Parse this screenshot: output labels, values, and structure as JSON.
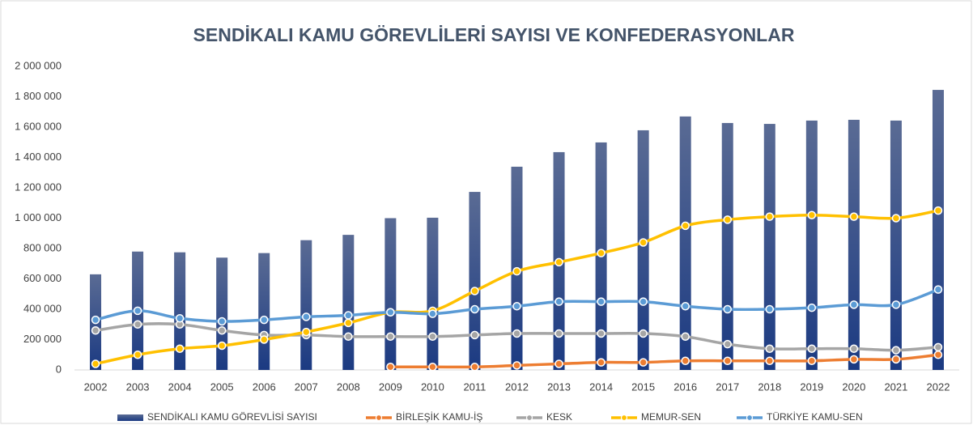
{
  "chart_data": {
    "type": "bar",
    "title": "SENDİKALI KAMU GÖREVLİLERİ SAYISI VE KONFEDERASYONLAR",
    "categories": [
      "2002",
      "2003",
      "2004",
      "2005",
      "2006",
      "2007",
      "2008",
      "2009",
      "2010",
      "2011",
      "2012",
      "2013",
      "2014",
      "2015",
      "2016",
      "2017",
      "2018",
      "2019",
      "2020",
      "2021",
      "2022"
    ],
    "series": [
      {
        "name": "SENDİKALI KAMU GÖREVLİSİ SAYISI",
        "type": "bar",
        "color": "#203a73",
        "values": [
          630000,
          780000,
          775000,
          740000,
          770000,
          855000,
          890000,
          1000000,
          1003000,
          1173000,
          1339000,
          1435000,
          1499000,
          1579000,
          1670000,
          1627000,
          1621000,
          1643000,
          1648000,
          1643000,
          1845000
        ]
      },
      {
        "name": "BİRLEŞİK KAMU-İŞ",
        "type": "line",
        "color": "#ed7d31",
        "values": [
          null,
          null,
          null,
          null,
          null,
          null,
          null,
          20000,
          20000,
          20000,
          30000,
          40000,
          50000,
          50000,
          60000,
          60000,
          60000,
          60000,
          70000,
          70000,
          100000
        ]
      },
      {
        "name": "KESK",
        "type": "line",
        "color": "#a5a5a5",
        "values": [
          260000,
          300000,
          300000,
          260000,
          230000,
          230000,
          220000,
          220000,
          220000,
          230000,
          240000,
          240000,
          240000,
          240000,
          220000,
          170000,
          140000,
          140000,
          140000,
          130000,
          150000
        ]
      },
      {
        "name": "MEMUR-SEN",
        "type": "line",
        "color": "#ffc000",
        "values": [
          40000,
          100000,
          140000,
          160000,
          200000,
          250000,
          310000,
          380000,
          390000,
          520000,
          650000,
          710000,
          770000,
          840000,
          950000,
          990000,
          1010000,
          1020000,
          1010000,
          1000000,
          1050000
        ]
      },
      {
        "name": "TÜRKİYE KAMU-SEN",
        "type": "line",
        "color": "#5b9bd5",
        "values": [
          330000,
          390000,
          340000,
          320000,
          330000,
          350000,
          360000,
          380000,
          370000,
          400000,
          420000,
          450000,
          450000,
          450000,
          420000,
          400000,
          400000,
          410000,
          430000,
          430000,
          530000
        ]
      }
    ],
    "ylim": [
      0,
      2000000
    ],
    "yticks": [
      0,
      {
        "value": 200000,
        "label": "200 000"
      },
      {
        "value": 400000,
        "label": "400 000"
      },
      {
        "value": 600000,
        "label": "600 000"
      },
      {
        "value": 800000,
        "label": "800 000"
      },
      {
        "value": 1000000,
        "label": "1 000 000"
      },
      {
        "value": 1200000,
        "label": "1 200 000"
      },
      {
        "value": 1400000,
        "label": "1 400 000"
      },
      {
        "value": 1600000,
        "label": "1 600 000"
      },
      {
        "value": 1800000,
        "label": "1 800 000"
      },
      {
        "value": 2000000,
        "label": "2 000 000"
      }
    ],
    "grid": false,
    "legend": "bottom"
  }
}
